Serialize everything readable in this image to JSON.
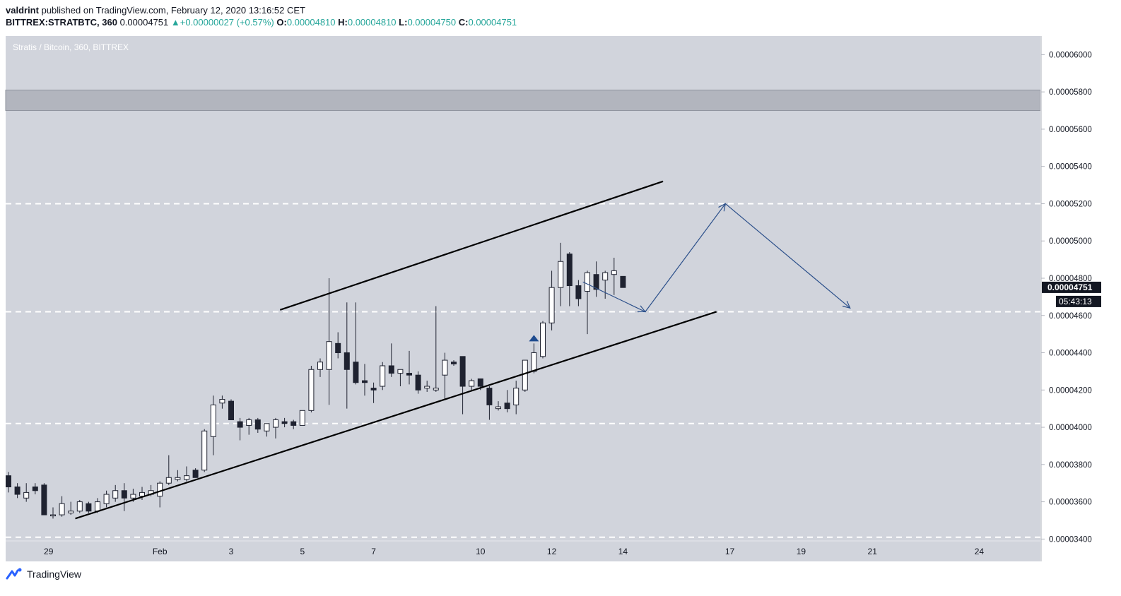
{
  "header": {
    "author": "valdrint",
    "published_text": "published on TradingView.com, February 12, 2020 13:16:52 CET",
    "symbol": "BITTREX:STRATBTC, 360",
    "last": "0.00004751",
    "change": "+0.00000027 (+0.57%)",
    "o_label": "O:",
    "o_val": "0.00004810",
    "h_label": "H:",
    "h_val": "0.00004810",
    "l_label": "L:",
    "l_val": "0.00004750",
    "c_label": "C:",
    "c_val": "0.00004751"
  },
  "footer": {
    "brand": "TradingView"
  },
  "colors": {
    "pane": "#d1d4dc",
    "up_fill": "#ffffff",
    "down_fill": "#1f2230",
    "arrow": "#2b4f8a",
    "resistance_zone": "#b2b5be"
  },
  "chart_data": {
    "type": "candlestick",
    "title": "Stratis / Bitcoin, 360, BITTREX",
    "ylim": [
      3.39e-05,
      6.1e-05
    ],
    "y_ticks": [
      "0.00006000",
      "0.00005800",
      "0.00005600",
      "0.00005400",
      "0.00005200",
      "0.00005000",
      "0.00004800",
      "0.00004600",
      "0.00004400",
      "0.00004200",
      "0.00004000",
      "0.00003800",
      "0.00003600",
      "0.00003400"
    ],
    "x_ticks": [
      "29",
      "Feb",
      "3",
      "5",
      "7",
      "10",
      "12",
      "14",
      "17",
      "19",
      "21",
      "24"
    ],
    "last_price_label": "0.00004751",
    "countdown_label": "05:43:13",
    "resistance_zone": [
      5.7e-05,
      5.81e-05
    ],
    "horizontal_levels": [
      5.2e-05,
      4.62e-05,
      4.02e-05,
      3.41e-05
    ],
    "channel_upper": [
      {
        "t": 30.5,
        "v": 4.63e-05
      },
      {
        "t": 73.5,
        "v": 5.32e-05
      }
    ],
    "channel_lower": [
      {
        "t": 7.5,
        "v": 3.51e-05
      },
      {
        "t": 79.5,
        "v": 4.62e-05
      }
    ],
    "projection_path": [
      {
        "t": 64.5,
        "v": 4.78e-05
      },
      {
        "t": 71.5,
        "v": 4.62e-05
      },
      {
        "t": 80.5,
        "v": 5.2e-05
      },
      {
        "t": 94.5,
        "v": 4.64e-05
      }
    ],
    "marker": {
      "t": 59,
      "v": 4.48e-05
    },
    "candles": [
      {
        "o": 3.74,
        "h": 3.76,
        "l": 3.65,
        "c": 3.68
      },
      {
        "o": 3.68,
        "h": 3.7,
        "l": 3.62,
        "c": 3.64
      },
      {
        "o": 3.62,
        "h": 3.7,
        "l": 3.6,
        "c": 3.65
      },
      {
        "o": 3.68,
        "h": 3.7,
        "l": 3.64,
        "c": 3.66
      },
      {
        "o": 3.69,
        "h": 3.7,
        "l": 3.53,
        "c": 3.53
      },
      {
        "o": 3.53,
        "h": 3.57,
        "l": 3.51,
        "c": 3.53
      },
      {
        "o": 3.53,
        "h": 3.63,
        "l": 3.52,
        "c": 3.59
      },
      {
        "o": 3.54,
        "h": 3.6,
        "l": 3.53,
        "c": 3.55
      },
      {
        "o": 3.55,
        "h": 3.61,
        "l": 3.54,
        "c": 3.6
      },
      {
        "o": 3.59,
        "h": 3.6,
        "l": 3.54,
        "c": 3.55
      },
      {
        "o": 3.55,
        "h": 3.62,
        "l": 3.54,
        "c": 3.6
      },
      {
        "o": 3.59,
        "h": 3.66,
        "l": 3.57,
        "c": 3.64
      },
      {
        "o": 3.62,
        "h": 3.69,
        "l": 3.6,
        "c": 3.66
      },
      {
        "o": 3.66,
        "h": 3.7,
        "l": 3.55,
        "c": 3.62
      },
      {
        "o": 3.62,
        "h": 3.67,
        "l": 3.6,
        "c": 3.64
      },
      {
        "o": 3.63,
        "h": 3.68,
        "l": 3.61,
        "c": 3.65
      },
      {
        "o": 3.64,
        "h": 3.69,
        "l": 3.63,
        "c": 3.66
      },
      {
        "o": 3.63,
        "h": 3.71,
        "l": 3.57,
        "c": 3.7
      },
      {
        "o": 3.7,
        "h": 3.85,
        "l": 3.69,
        "c": 3.73
      },
      {
        "o": 3.72,
        "h": 3.77,
        "l": 3.71,
        "c": 3.73
      },
      {
        "o": 3.72,
        "h": 3.79,
        "l": 3.71,
        "c": 3.74
      },
      {
        "o": 3.77,
        "h": 3.78,
        "l": 3.73,
        "c": 3.73
      },
      {
        "o": 3.77,
        "h": 3.99,
        "l": 3.76,
        "c": 3.98
      },
      {
        "o": 3.95,
        "h": 4.17,
        "l": 3.85,
        "c": 4.12
      },
      {
        "o": 4.13,
        "h": 4.17,
        "l": 4.1,
        "c": 4.15
      },
      {
        "o": 4.14,
        "h": 4.15,
        "l": 4.04,
        "c": 4.04
      },
      {
        "o": 4.03,
        "h": 4.05,
        "l": 3.93,
        "c": 4.0
      },
      {
        "o": 4.01,
        "h": 4.05,
        "l": 3.96,
        "c": 4.04
      },
      {
        "o": 4.04,
        "h": 4.05,
        "l": 3.97,
        "c": 3.99
      },
      {
        "o": 3.98,
        "h": 4.02,
        "l": 3.95,
        "c": 4.02
      },
      {
        "o": 4.0,
        "h": 4.05,
        "l": 3.94,
        "c": 4.04
      },
      {
        "o": 4.03,
        "h": 4.05,
        "l": 4.0,
        "c": 4.02
      },
      {
        "o": 4.03,
        "h": 4.04,
        "l": 3.99,
        "c": 4.01
      },
      {
        "o": 4.01,
        "h": 4.09,
        "l": 4.01,
        "c": 4.09
      },
      {
        "o": 4.09,
        "h": 4.33,
        "l": 4.08,
        "c": 4.31
      },
      {
        "o": 4.31,
        "h": 4.37,
        "l": 4.27,
        "c": 4.35
      },
      {
        "o": 4.31,
        "h": 4.8,
        "l": 4.12,
        "c": 4.46
      },
      {
        "o": 4.45,
        "h": 4.51,
        "l": 4.37,
        "c": 4.4
      },
      {
        "o": 4.4,
        "h": 4.67,
        "l": 4.1,
        "c": 4.31
      },
      {
        "o": 4.35,
        "h": 4.67,
        "l": 4.23,
        "c": 4.24
      },
      {
        "o": 4.25,
        "h": 4.34,
        "l": 4.17,
        "c": 4.24
      },
      {
        "o": 4.21,
        "h": 4.24,
        "l": 4.13,
        "c": 4.2
      },
      {
        "o": 4.22,
        "h": 4.35,
        "l": 4.2,
        "c": 4.33
      },
      {
        "o": 4.33,
        "h": 4.45,
        "l": 4.27,
        "c": 4.29
      },
      {
        "o": 4.29,
        "h": 4.31,
        "l": 4.22,
        "c": 4.31
      },
      {
        "o": 4.29,
        "h": 4.41,
        "l": 4.23,
        "c": 4.28
      },
      {
        "o": 4.28,
        "h": 4.3,
        "l": 4.18,
        "c": 4.2
      },
      {
        "o": 4.21,
        "h": 4.25,
        "l": 4.19,
        "c": 4.22
      },
      {
        "o": 4.2,
        "h": 4.65,
        "l": 4.19,
        "c": 4.21
      },
      {
        "o": 4.28,
        "h": 4.4,
        "l": 4.15,
        "c": 4.36
      },
      {
        "o": 4.35,
        "h": 4.36,
        "l": 4.33,
        "c": 4.34
      },
      {
        "o": 4.38,
        "h": 4.38,
        "l": 4.07,
        "c": 4.22
      },
      {
        "o": 4.22,
        "h": 4.26,
        "l": 4.2,
        "c": 4.25
      },
      {
        "o": 4.26,
        "h": 4.26,
        "l": 4.2,
        "c": 4.22
      },
      {
        "o": 4.21,
        "h": 4.22,
        "l": 4.04,
        "c": 4.12
      },
      {
        "o": 4.1,
        "h": 4.14,
        "l": 4.09,
        "c": 4.11
      },
      {
        "o": 4.13,
        "h": 4.2,
        "l": 4.08,
        "c": 4.1
      },
      {
        "o": 4.12,
        "h": 4.25,
        "l": 4.07,
        "c": 4.21
      },
      {
        "o": 4.2,
        "h": 4.36,
        "l": 4.19,
        "c": 4.36
      },
      {
        "o": 4.3,
        "h": 4.45,
        "l": 4.29,
        "c": 4.4
      },
      {
        "o": 4.38,
        "h": 4.57,
        "l": 4.37,
        "c": 4.56
      },
      {
        "o": 4.56,
        "h": 4.84,
        "l": 4.52,
        "c": 4.75
      },
      {
        "o": 4.75,
        "h": 4.99,
        "l": 4.65,
        "c": 4.89
      },
      {
        "o": 4.93,
        "h": 4.94,
        "l": 4.65,
        "c": 4.76
      },
      {
        "o": 4.76,
        "h": 4.79,
        "l": 4.65,
        "c": 4.69
      },
      {
        "o": 4.73,
        "h": 4.84,
        "l": 4.5,
        "c": 4.83
      },
      {
        "o": 4.82,
        "h": 4.89,
        "l": 4.7,
        "c": 4.74
      },
      {
        "o": 4.79,
        "h": 4.84,
        "l": 4.69,
        "c": 4.83
      },
      {
        "o": 4.82,
        "h": 4.91,
        "l": 4.71,
        "c": 4.84
      },
      {
        "o": 4.81,
        "h": 4.81,
        "l": 4.75,
        "c": 4.75
      }
    ]
  }
}
